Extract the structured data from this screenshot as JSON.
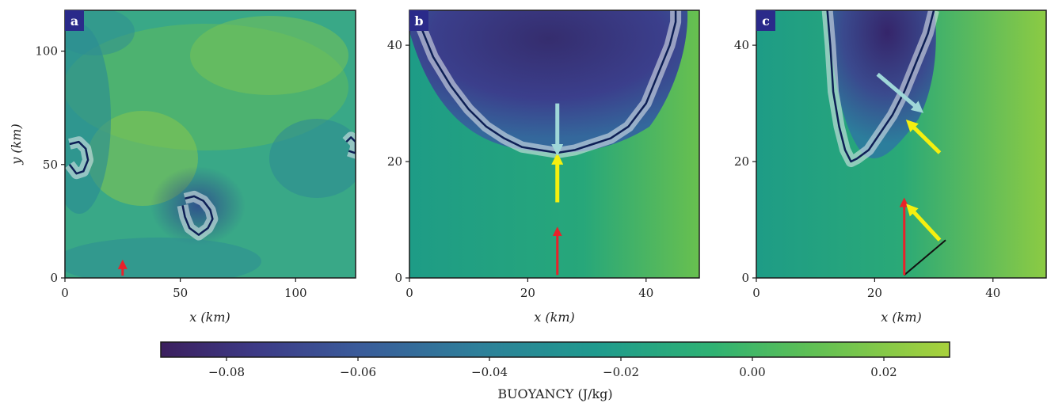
{
  "colors": {
    "frame": "#1c1c1c",
    "contour": "#0d1f55",
    "arrow_red": "#e8222a",
    "arrow_yellow": "#f5ef0f",
    "arrow_cyan": "#9fd7d8",
    "label_bg": "#2a2a8a"
  },
  "chart_data": [
    {
      "type": "heatmap",
      "panel_label": "a",
      "xlabel": "x (km)",
      "ylabel": "y (km)",
      "xlim": [
        0,
        126
      ],
      "ylim": [
        0,
        118
      ],
      "xticks": [
        0,
        50,
        100
      ],
      "yticks": [
        0,
        50,
        100
      ],
      "contours": [
        {
          "name": "cold-pool-center",
          "x": [
            52,
            56,
            60,
            63,
            64,
            62,
            58,
            54,
            52,
            51
          ],
          "y": [
            35,
            36,
            34,
            30,
            26,
            22,
            19,
            22,
            27,
            32
          ]
        },
        {
          "name": "cold-pool-left",
          "x": [
            2,
            6,
            9,
            10,
            8,
            5,
            2
          ],
          "y": [
            59,
            60,
            57,
            52,
            47,
            46,
            50
          ]
        },
        {
          "name": "cold-pool-right",
          "x": [
            122,
            124,
            126,
            126,
            123
          ],
          "y": [
            60,
            62,
            60,
            55,
            56
          ]
        }
      ],
      "arrows": [
        {
          "color": "red",
          "x0": 25,
          "y0": 1,
          "x1": 25,
          "y1": 6
        }
      ]
    },
    {
      "type": "heatmap",
      "panel_label": "b",
      "xlabel": "x (km)",
      "ylabel": "",
      "xlim": [
        0,
        49
      ],
      "ylim": [
        0,
        46
      ],
      "xticks": [
        0,
        20,
        40
      ],
      "yticks": [
        0,
        20,
        40
      ],
      "contours": [
        {
          "name": "cold-pool-boundary",
          "x": [
            1,
            2,
            4,
            7,
            10,
            13,
            16,
            19,
            22,
            25,
            28,
            31,
            34,
            37,
            40,
            42,
            44,
            45,
            45
          ],
          "y": [
            46,
            43,
            38,
            33,
            29,
            26,
            24,
            22.5,
            22,
            21.5,
            22,
            23,
            24,
            26,
            30,
            35,
            40,
            44,
            46
          ]
        }
      ],
      "arrows": [
        {
          "color": "red",
          "x0": 25,
          "y0": 0.5,
          "x1": 25,
          "y1": 8
        },
        {
          "color": "yellow",
          "x0": 25,
          "y0": 13,
          "x1": 25,
          "y1": 20.5
        },
        {
          "color": "cyan",
          "x0": 25,
          "y0": 30,
          "x1": 25,
          "y1": 22
        }
      ]
    },
    {
      "type": "heatmap",
      "panel_label": "c",
      "xlabel": "x (km)",
      "ylabel": "",
      "xlim": [
        0,
        49
      ],
      "ylim": [
        0,
        46
      ],
      "xticks": [
        0,
        20,
        40
      ],
      "yticks": [
        0,
        20,
        40
      ],
      "contours": [
        {
          "name": "cold-pool-boundary",
          "x": [
            12,
            12.5,
            13,
            14,
            15,
            16,
            17,
            19,
            21,
            23,
            25,
            27,
            29,
            30
          ],
          "y": [
            46,
            40,
            32,
            26,
            22,
            20,
            20.5,
            22,
            25,
            28,
            32,
            37,
            42,
            46
          ]
        }
      ],
      "arrows": [
        {
          "color": "red",
          "x0": 25,
          "y0": 0.5,
          "x1": 25,
          "y1": 13
        },
        {
          "color": "yellow",
          "x0": 31,
          "y0": 6.5,
          "x1": 26,
          "y1": 12
        },
        {
          "color": "yellow",
          "x0": 31,
          "y0": 21.5,
          "x1": 26,
          "y1": 26.5
        },
        {
          "color": "cyan",
          "x0": 20.5,
          "y0": 35,
          "x1": 27.5,
          "y1": 29
        }
      ],
      "segments": [
        {
          "color": "black",
          "x0": 25,
          "y0": 0.5,
          "x1": 32,
          "y1": 6.5
        }
      ]
    }
  ],
  "colorbar": {
    "label": "BUOYANCY (J/kg)",
    "range": [
      -0.09,
      0.03
    ],
    "ticks": [
      -0.08,
      -0.06,
      -0.04,
      -0.02,
      0.0,
      0.02
    ],
    "tick_labels": [
      "−0.08",
      "−0.06",
      "−0.04",
      "−0.02",
      "0.00",
      "0.02"
    ]
  }
}
